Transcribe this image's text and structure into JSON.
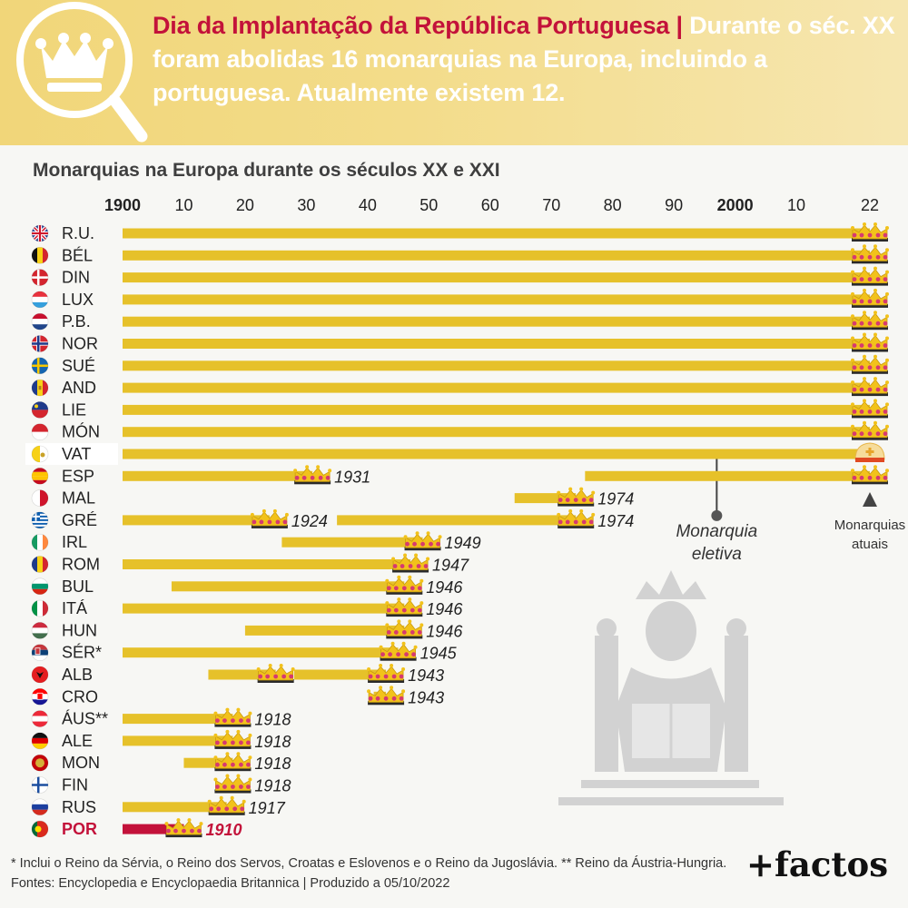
{
  "header": {
    "highlight": "Dia da Implantação da República Portuguesa |",
    "headline": "Durante o séc. XX foram abolidas 16 monarquias na Europa, incluindo a portuguesa. Atualmente existem 12."
  },
  "chart_data": {
    "type": "bar",
    "title": "Monarquias na Europa durante os séculos XX e XXI",
    "x_range": [
      1900,
      2022
    ],
    "x_ticks": [
      {
        "year": 1900,
        "label": "1900",
        "bold": true
      },
      {
        "year": 1910,
        "label": "10"
      },
      {
        "year": 1920,
        "label": "20"
      },
      {
        "year": 1930,
        "label": "30"
      },
      {
        "year": 1940,
        "label": "40"
      },
      {
        "year": 1950,
        "label": "50"
      },
      {
        "year": 1960,
        "label": "60"
      },
      {
        "year": 1970,
        "label": "70"
      },
      {
        "year": 1980,
        "label": "80"
      },
      {
        "year": 1990,
        "label": "90"
      },
      {
        "year": 2000,
        "label": "2000",
        "bold": true
      },
      {
        "year": 2010,
        "label": "10"
      },
      {
        "year": 2022,
        "label": "22"
      }
    ],
    "colors": {
      "bar": "#e6c12a",
      "portugal": "#c3123a",
      "crown": "#f2c21b",
      "jewel": "#d63a6f",
      "axis_text": "#222222",
      "silhouette": "#d2d2d2"
    },
    "rows": [
      {
        "label": "R.U.",
        "flag": "uk",
        "spans": [
          [
            1900,
            2022
          ]
        ],
        "ends": [
          {
            "year": 2022
          }
        ]
      },
      {
        "label": "BÉL",
        "flag": "be",
        "spans": [
          [
            1900,
            2022
          ]
        ],
        "ends": [
          {
            "year": 2022
          }
        ]
      },
      {
        "label": "DIN",
        "flag": "dk",
        "spans": [
          [
            1900,
            2022
          ]
        ],
        "ends": [
          {
            "year": 2022
          }
        ]
      },
      {
        "label": "LUX",
        "flag": "lu",
        "spans": [
          [
            1900,
            2022
          ]
        ],
        "ends": [
          {
            "year": 2022
          }
        ]
      },
      {
        "label": "P.B.",
        "flag": "nl",
        "spans": [
          [
            1900,
            2022
          ]
        ],
        "ends": [
          {
            "year": 2022
          }
        ]
      },
      {
        "label": "NOR",
        "flag": "no",
        "spans": [
          [
            1900,
            2022
          ]
        ],
        "ends": [
          {
            "year": 2022
          }
        ]
      },
      {
        "label": "SUÉ",
        "flag": "se",
        "spans": [
          [
            1900,
            2022
          ]
        ],
        "ends": [
          {
            "year": 2022
          }
        ]
      },
      {
        "label": "AND",
        "flag": "ad",
        "spans": [
          [
            1900,
            2022
          ]
        ],
        "ends": [
          {
            "year": 2022
          }
        ]
      },
      {
        "label": "LIE",
        "flag": "li",
        "spans": [
          [
            1900,
            2022
          ]
        ],
        "ends": [
          {
            "year": 2022
          }
        ]
      },
      {
        "label": "MÓN",
        "flag": "mc",
        "spans": [
          [
            1900,
            2022
          ]
        ],
        "ends": [
          {
            "year": 2022
          }
        ]
      },
      {
        "label": "VAT",
        "flag": "va",
        "spans": [
          [
            1900,
            2022
          ]
        ],
        "ends": [
          {
            "year": 2022,
            "mitre": true
          }
        ]
      },
      {
        "label": "ESP",
        "flag": "es",
        "spans": [
          [
            1900,
            1931
          ],
          [
            1975.5,
            2022
          ]
        ],
        "ends": [
          {
            "year": 1931,
            "label": "1931"
          },
          {
            "year": 2022
          }
        ]
      },
      {
        "label": "MAL",
        "flag": "mt",
        "spans": [
          [
            1964,
            1974
          ]
        ],
        "ends": [
          {
            "year": 1974,
            "label": "1974"
          }
        ]
      },
      {
        "label": "GRÉ",
        "flag": "gr",
        "spans": [
          [
            1900,
            1924
          ],
          [
            1935,
            1974
          ]
        ],
        "ends": [
          {
            "year": 1924,
            "label": "1924"
          },
          {
            "year": 1974,
            "label": "1974"
          }
        ]
      },
      {
        "label": "IRL",
        "flag": "ie",
        "spans": [
          [
            1926,
            1949
          ]
        ],
        "ends": [
          {
            "year": 1949,
            "label": "1949"
          }
        ]
      },
      {
        "label": "ROM",
        "flag": "ro",
        "spans": [
          [
            1900,
            1947
          ]
        ],
        "ends": [
          {
            "year": 1947,
            "label": "1947"
          }
        ]
      },
      {
        "label": "BUL",
        "flag": "bg",
        "spans": [
          [
            1908,
            1946
          ]
        ],
        "ends": [
          {
            "year": 1946,
            "label": "1946"
          }
        ]
      },
      {
        "label": "ITÁ",
        "flag": "it",
        "spans": [
          [
            1900,
            1946
          ]
        ],
        "ends": [
          {
            "year": 1946,
            "label": "1946"
          }
        ]
      },
      {
        "label": "HUN",
        "flag": "hu",
        "spans": [
          [
            1920,
            1946
          ]
        ],
        "ends": [
          {
            "year": 1946,
            "label": "1946"
          }
        ]
      },
      {
        "label": "SÉR*",
        "flag": "rs",
        "spans": [
          [
            1900,
            1945
          ]
        ],
        "ends": [
          {
            "year": 1945,
            "label": "1945"
          }
        ]
      },
      {
        "label": "ALB",
        "flag": "al",
        "spans": [
          [
            1914,
            1925
          ],
          [
            1928,
            1943
          ]
        ],
        "ends": [
          {
            "year": 1925
          },
          {
            "year": 1943,
            "label": "1943"
          }
        ]
      },
      {
        "label": "CRO",
        "flag": "hr",
        "spans": [
          [
            1941,
            1943
          ]
        ],
        "ends": [
          {
            "year": 1943,
            "label": "1943"
          }
        ]
      },
      {
        "label": "ÁUS**",
        "flag": "at",
        "spans": [
          [
            1900,
            1918
          ]
        ],
        "ends": [
          {
            "year": 1918,
            "label": "1918"
          }
        ]
      },
      {
        "label": "ALE",
        "flag": "de",
        "spans": [
          [
            1900,
            1918
          ]
        ],
        "ends": [
          {
            "year": 1918,
            "label": "1918"
          }
        ]
      },
      {
        "label": "MON",
        "flag": "me",
        "spans": [
          [
            1910,
            1918
          ]
        ],
        "ends": [
          {
            "year": 1918,
            "label": "1918"
          }
        ]
      },
      {
        "label": "FIN",
        "flag": "fi",
        "spans": [
          [
            1918,
            1918
          ]
        ],
        "ends": [
          {
            "year": 1918,
            "label": "1918"
          }
        ]
      },
      {
        "label": "RUS",
        "flag": "ru",
        "spans": [
          [
            1900,
            1917
          ]
        ],
        "ends": [
          {
            "year": 1917,
            "label": "1917"
          }
        ]
      },
      {
        "label": "POR",
        "flag": "pt",
        "highlight": true,
        "spans": [
          [
            1900,
            1910
          ]
        ],
        "ends": [
          {
            "year": 1910,
            "label": "1910"
          }
        ]
      }
    ],
    "annotations": [
      {
        "text": [
          "Monarquia",
          "eletiva"
        ],
        "marker": "pin"
      },
      {
        "text": [
          "Monarquias",
          "atuais"
        ],
        "marker": "triangle"
      }
    ]
  },
  "footer": {
    "footnote": "* Inclui o Reino da Sérvia, o Reino dos Servos, Croatas e Eslovenos e o Reino da Jugoslávia. ** Reino da Áustria-Hungria. Fontes: Encyclopedia e Encyclopaedia Britannica | Produzido a 05/10/2022",
    "brand": "+factos"
  }
}
